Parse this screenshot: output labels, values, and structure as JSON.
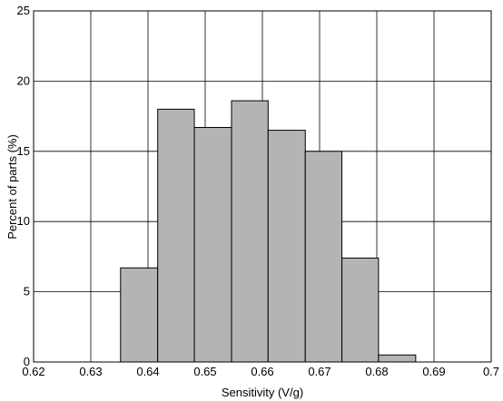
{
  "chart_data": {
    "type": "histogram",
    "x_label": "Sensitivity (V/g)",
    "y_label": "Percent of parts (%)",
    "bins": [
      0.6352,
      0.6417,
      0.6481,
      0.6546,
      0.661,
      0.6675,
      0.6739,
      0.6803,
      0.6868
    ],
    "values": [
      6.7,
      18.0,
      16.7,
      18.6,
      16.5,
      15.0,
      7.4,
      0.5
    ],
    "color": "#b4b4b4",
    "xlim": [
      0.62,
      0.7
    ],
    "xticks": [
      0.62,
      0.63,
      0.64,
      0.65,
      0.66,
      0.67,
      0.68,
      0.69,
      0.7
    ],
    "ylim": [
      0,
      25
    ],
    "yticks": [
      0,
      5,
      10,
      15,
      20,
      25
    ],
    "grid": true
  }
}
